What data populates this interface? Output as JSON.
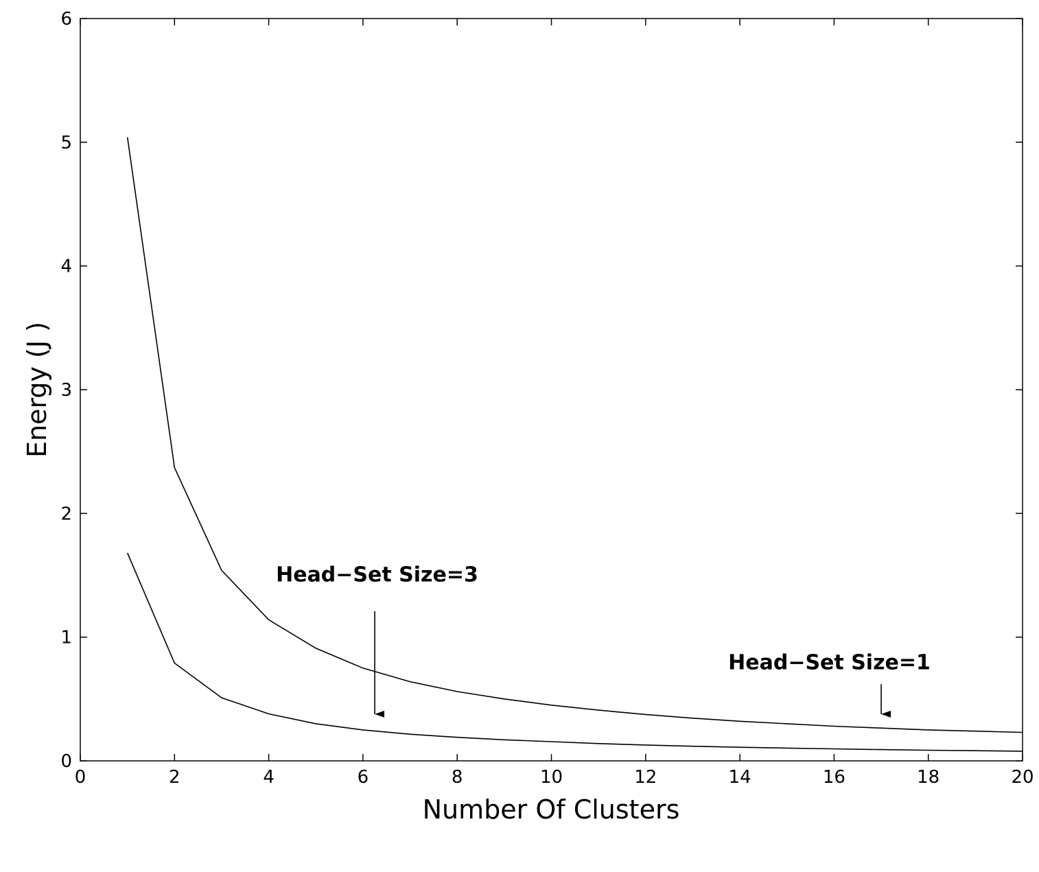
{
  "chart_data": {
    "type": "line",
    "title": "",
    "xlabel": "Number Of Clusters",
    "ylabel": "Energy (J )",
    "xlim": [
      0,
      20
    ],
    "ylim": [
      0,
      6
    ],
    "xticks": [
      0,
      2,
      4,
      6,
      8,
      10,
      12,
      14,
      16,
      18,
      20
    ],
    "yticks": [
      0,
      1,
      2,
      3,
      4,
      5,
      6
    ],
    "grid": false,
    "line_color": "#000000",
    "series": [
      {
        "x": [
          1,
          2,
          3,
          4,
          5,
          6,
          7,
          8,
          9,
          10,
          11,
          12,
          13,
          14,
          15,
          16,
          17,
          18,
          19,
          20
        ],
        "values": [
          5.04,
          2.37,
          1.54,
          1.14,
          0.91,
          0.75,
          0.64,
          0.56,
          0.5,
          0.45,
          0.41,
          0.375,
          0.345,
          0.32,
          0.3,
          0.28,
          0.265,
          0.25,
          0.24,
          0.23
        ]
      },
      {
        "x": [
          1,
          2,
          3,
          4,
          5,
          6,
          7,
          8,
          9,
          10,
          11,
          12,
          13,
          14,
          15,
          16,
          17,
          18,
          19,
          20
        ],
        "values": [
          1.68,
          0.79,
          0.51,
          0.38,
          0.3,
          0.25,
          0.215,
          0.19,
          0.17,
          0.155,
          0.14,
          0.128,
          0.118,
          0.11,
          0.103,
          0.097,
          0.091,
          0.086,
          0.082,
          0.078
        ]
      }
    ],
    "annotations": [
      {
        "text": "Head−Set Size=3",
        "text_at": [
          6.3,
          1.45
        ],
        "arrow_from": [
          6.25,
          1.21
        ],
        "arrow_to": [
          6.25,
          0.3
        ]
      },
      {
        "text": "Head−Set Size=1",
        "text_at": [
          15.9,
          0.74
        ],
        "arrow_from": [
          17.0,
          0.62
        ],
        "arrow_to": [
          17.0,
          0.3
        ]
      }
    ]
  }
}
